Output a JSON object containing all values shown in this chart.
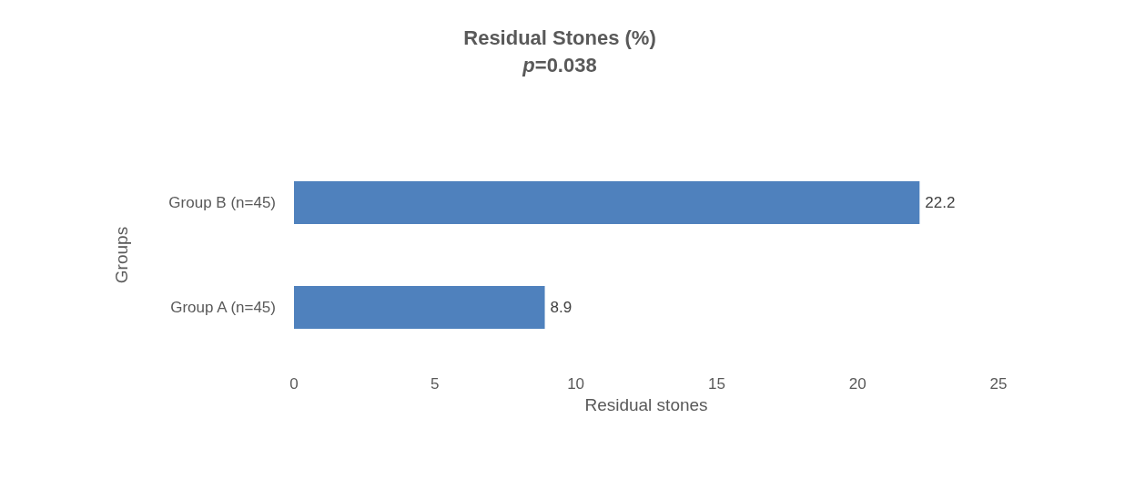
{
  "chart_data": {
    "type": "bar",
    "orientation": "horizontal",
    "title": "Residual Stones (%)",
    "subtitle": "p=0.038",
    "xlabel": "Residual stones",
    "ylabel": "Groups",
    "categories": [
      "Group B (n=45)",
      "Group A (n=45)"
    ],
    "values": [
      22.2,
      8.9
    ],
    "color": "#4f81bd",
    "xlim": [
      0,
      25
    ],
    "xticks": [
      0,
      5,
      10,
      15,
      20,
      25
    ],
    "grid": false,
    "data_labels": true
  }
}
